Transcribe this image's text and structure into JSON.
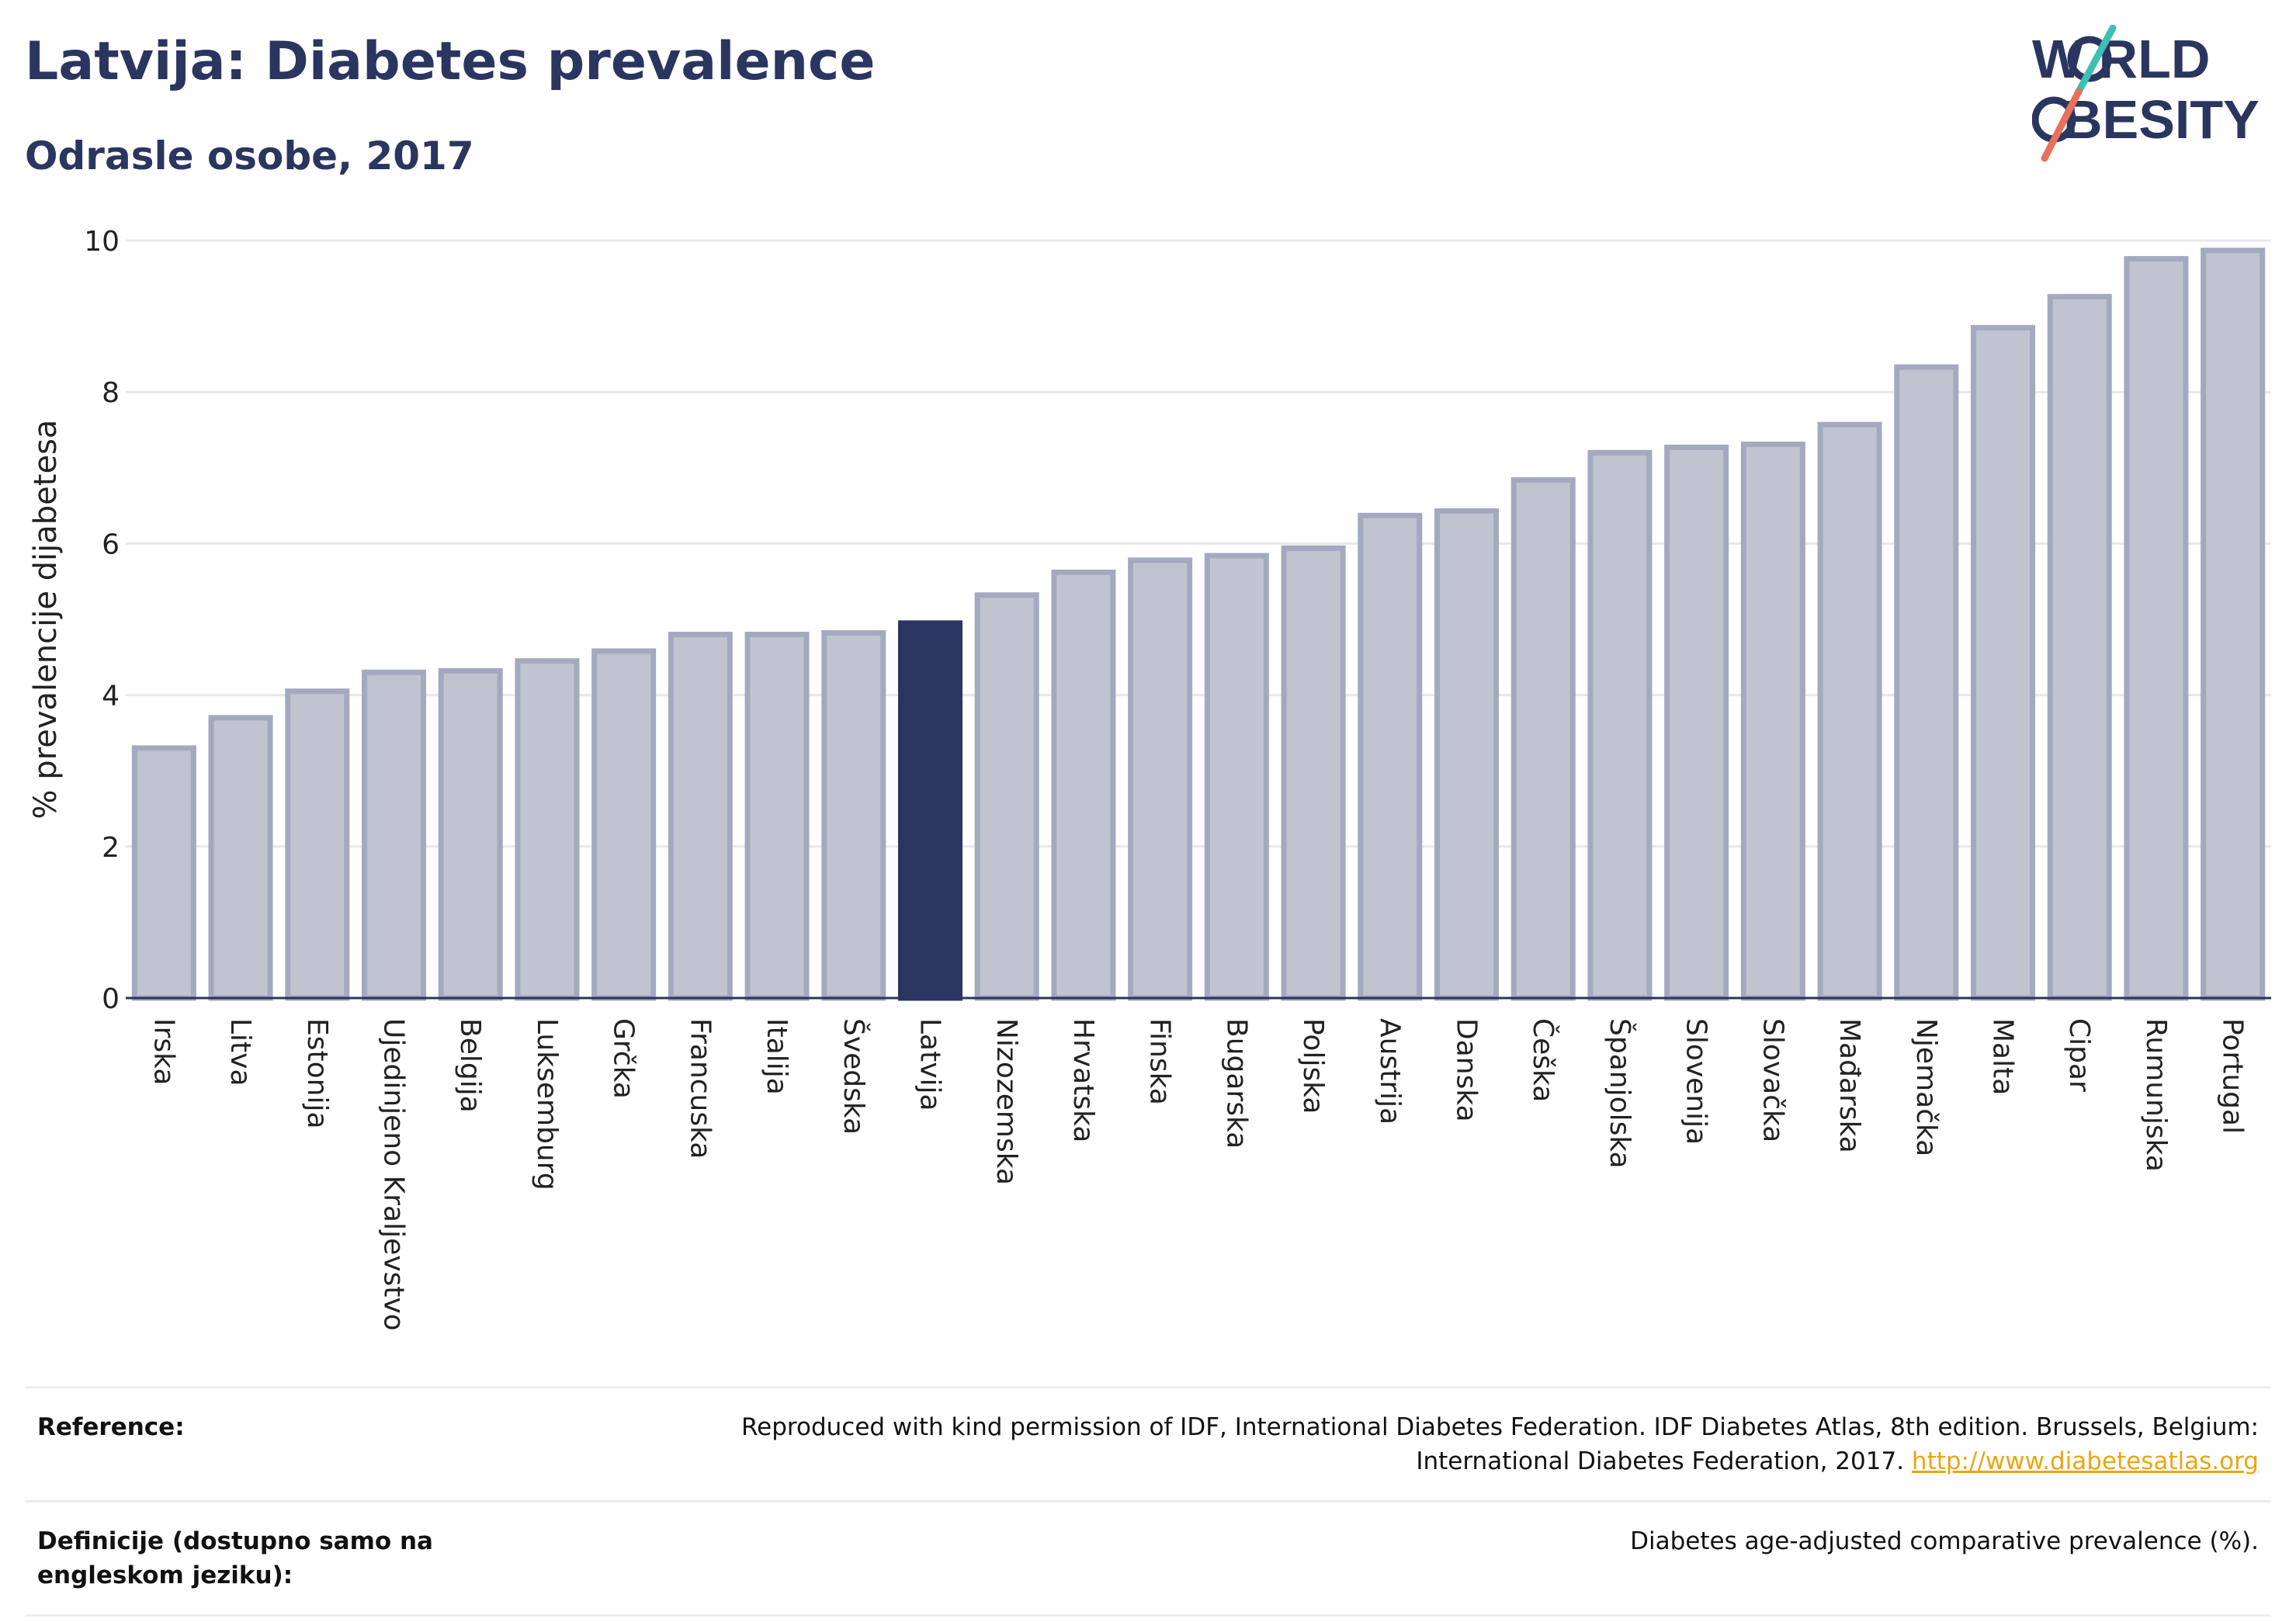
{
  "header": {
    "title": "Latvija: Diabetes prevalence",
    "subtitle": "Odrasle osobe, 2017"
  },
  "logo": {
    "line1": "W RLD",
    "line2": "BESITY",
    "text": "WORLD OBESITY"
  },
  "colors": {
    "highlight": "#2a3560",
    "bar_fill": "#c0c4d0",
    "bar_stroke": "#a3a9bf",
    "title": "#2a3560",
    "link": "#e8a712"
  },
  "chart_data": {
    "type": "bar",
    "ylabel": "% prevalencije dijabetesa",
    "ylim": [
      0,
      10
    ],
    "yticks": [
      "0",
      "2",
      "4",
      "6",
      "8",
      "10"
    ],
    "highlight": "Latvija",
    "categories": [
      "Irska",
      "Litva",
      "Estonija",
      "Ujedinjeno Kraljevstvo",
      "Belgija",
      "Luksemburg",
      "Grčka",
      "Francuska",
      "Italija",
      "Švedska",
      "Latvija",
      "Nizozemska",
      "Hrvatska",
      "Finska",
      "Bugarska",
      "Poljska",
      "Austrija",
      "Danska",
      "Češka",
      "Španjolska",
      "Slovenija",
      "Slovačka",
      "Mađarska",
      "Njemačka",
      "Malta",
      "Cipar",
      "Rumunjska",
      "Portugal"
    ],
    "values": [
      3.3,
      3.7,
      4.05,
      4.3,
      4.32,
      4.45,
      4.58,
      4.8,
      4.8,
      4.82,
      4.95,
      5.32,
      5.62,
      5.78,
      5.84,
      5.94,
      6.37,
      6.43,
      6.84,
      7.2,
      7.27,
      7.31,
      7.57,
      8.33,
      8.85,
      9.26,
      9.76,
      9.87
    ]
  },
  "footer": {
    "reference_label": "Reference:",
    "reference_text": "Reproduced with kind permission of IDF, International Diabetes Federation. IDF Diabetes Atlas, 8th edition. Brussels, Belgium: International Diabetes Federation, 2017.",
    "reference_link": "http://www.diabetesatlas.org",
    "definition_label": "Definicije (dostupno samo na engleskom jeziku):",
    "definition_text": "Diabetes age-adjusted comparative prevalence (%)."
  }
}
